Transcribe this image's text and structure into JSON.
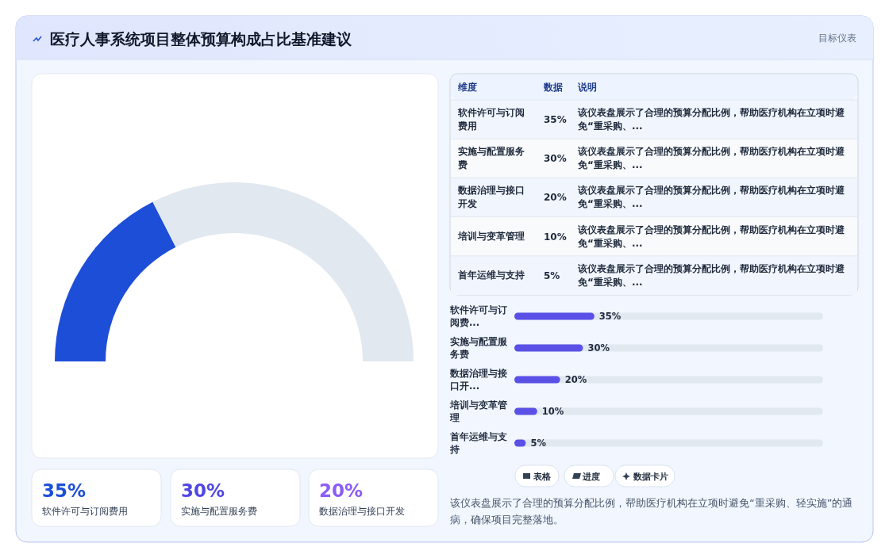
{
  "chart_data": [
    {
      "type": "donut",
      "title": "医疗人事系统项目整体预算构成占比基准建议",
      "annotations": [
        "目标仪表"
      ],
      "categories": [
        null,
        null
      ],
      "values": [
        35,
        65
      ],
      "colors": [
        "#1d4ed8",
        "#e2e8f0"
      ]
    },
    {
      "type": "other",
      "categories": [
        "软件许可与订阅费用",
        "实施与配置服务费",
        "数据治理与接口开发",
        "培训与变革管理",
        "首年运维与支持"
      ],
      "value_labels": [
        "35%",
        "30%",
        "20%",
        "10%",
        "5%"
      ],
      "annotations": [
        "维度",
        "数据",
        "说明",
        "该仪表盘展示了合理的预算分配比例，帮助医疗机构在立项时避免“重采购、...",
        "该仪表盘展示了合理的预算分配比例，帮助医疗机构在立项时避免“重采购、...",
        "该仪表盘展示了合理的预算分配比例，帮助医疗机构在立项时避免“重采购、...",
        "该仪表盘展示了合理的预算分配比例，帮助医疗机构在立项时避免“重采购、...",
        "该仪表盘展示了合理的预算分配比例，帮助医疗机构在立项时避免“重采购、..."
      ]
    },
    {
      "type": "bar",
      "orientation": "horizontal",
      "categories": [
        "软件许可与订阅费...",
        "实施与配置服务费",
        "数据治理与接口开...",
        "培训与变革管理",
        "首年运维与支持"
      ],
      "values": [
        35,
        30,
        20,
        10,
        5
      ],
      "value_labels": [
        "35%",
        "30%",
        "20%",
        "10%",
        "5%"
      ],
      "color": "#5b50e6",
      "xlim": [
        0,
        135
      ],
      "tick_labels": "y",
      "annotations": [
        "表格",
        "进度",
        "数据卡片",
        "该仪表盘展示了合理的预算分配比例，帮助医疗机构在立项时避免“重采购、轻实施”的通病，确保项目完整落地。"
      ]
    },
    {
      "type": "other",
      "categories": [
        "软件许可与订阅费用",
        "实施与配置服务费",
        "数据治理与接口开发"
      ],
      "value_labels": [
        "35%",
        "30%",
        "20%"
      ]
    }
  ]
}
